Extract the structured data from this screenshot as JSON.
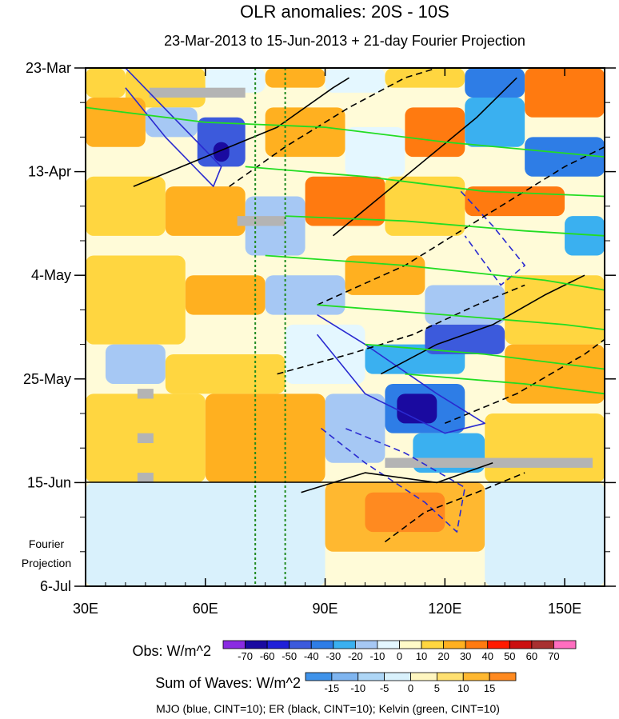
{
  "chart_data": {
    "type": "heatmap",
    "title": "OLR anomalies: 20S - 10S",
    "subtitle": "23-Mar-2013 to 15-Jun-2013 + 21-day Fourier Projection",
    "x_axis": {
      "range": [
        30,
        160
      ],
      "ticks": [
        30,
        60,
        90,
        120,
        150
      ],
      "tick_labels": [
        "30E",
        "60E",
        "90E",
        "120E",
        "150E"
      ]
    },
    "y_axis": {
      "range_days": [
        0,
        105
      ],
      "ticks_days": [
        0,
        21,
        42,
        63,
        84,
        105
      ],
      "tick_labels": [
        "23-Mar",
        "13-Apr",
        "4-May",
        "25-May",
        "15-Jun",
        "6-Jul"
      ],
      "minor_every_days": 7
    },
    "projection_start_day": 84,
    "projection_label_line1": "Fourier",
    "projection_label_line2": "Projection",
    "reference_longitudes": [
      72.5,
      80
    ],
    "obs_colorbar": {
      "label": "Obs: W/m^2",
      "levels": [
        "-70",
        "-60",
        "-50",
        "-40",
        "-30",
        "-20",
        "-10",
        "0",
        "10",
        "20",
        "30",
        "40",
        "50",
        "60",
        "70"
      ],
      "colors": [
        "#8a2be2",
        "#1a0aa0",
        "#2020d8",
        "#3c5adc",
        "#2e7de6",
        "#3ab0f0",
        "#a6c8f4",
        "#e4f7ff",
        "#fffbc8",
        "#ffd640",
        "#ffb020",
        "#ff7a10",
        "#ff1a00",
        "#cc1010",
        "#a83030",
        "#ff6ec0"
      ]
    },
    "waves_colorbar": {
      "label": "Sum of Waves: W/m^2",
      "levels": [
        "-15",
        "-10",
        "-5",
        "0",
        "5",
        "10",
        "15"
      ],
      "colors": [
        "#3f93ea",
        "#7fb5f0",
        "#aed6f6",
        "#d9f1fc",
        "#fff6c0",
        "#ffe070",
        "#ffb830",
        "#ff8a20"
      ]
    },
    "legend_text": "MJO (blue, CINT=10); ER (black, CINT=10); Kelvin (green, CINT=10)",
    "contour_colors": {
      "MJO": "#2a2ad0",
      "ER": "#000000",
      "Kelvin": "#22dd22"
    },
    "cells": [
      {
        "lon": [
          30,
          40
        ],
        "day": [
          0,
          6
        ],
        "v": 10
      },
      {
        "lon": [
          40,
          60
        ],
        "day": [
          0,
          8
        ],
        "v": 10
      },
      {
        "lon": [
          60,
          75
        ],
        "day": [
          0,
          5
        ],
        "v": -10
      },
      {
        "lon": [
          75,
          90
        ],
        "day": [
          0,
          4
        ],
        "v": 20
      },
      {
        "lon": [
          90,
          105
        ],
        "day": [
          0,
          5
        ],
        "v": -10
      },
      {
        "lon": [
          105,
          125
        ],
        "day": [
          0,
          4
        ],
        "v": 10
      },
      {
        "lon": [
          125,
          140
        ],
        "day": [
          0,
          6
        ],
        "v": -40
      },
      {
        "lon": [
          140,
          160
        ],
        "day": [
          0,
          10
        ],
        "v": 30
      },
      {
        "lon": [
          30,
          45
        ],
        "day": [
          6,
          16
        ],
        "v": 20
      },
      {
        "lon": [
          45,
          58
        ],
        "day": [
          8,
          14
        ],
        "v": -20
      },
      {
        "lon": [
          58,
          70
        ],
        "day": [
          10,
          20
        ],
        "v": -50
      },
      {
        "lon": [
          62,
          66
        ],
        "day": [
          15,
          19
        ],
        "v": -70
      },
      {
        "lon": [
          75,
          95
        ],
        "day": [
          8,
          18
        ],
        "v": 20
      },
      {
        "lon": [
          95,
          110
        ],
        "day": [
          12,
          22
        ],
        "v": -10
      },
      {
        "lon": [
          110,
          125
        ],
        "day": [
          8,
          18
        ],
        "v": 30
      },
      {
        "lon": [
          125,
          140
        ],
        "day": [
          6,
          16
        ],
        "v": -30
      },
      {
        "lon": [
          140,
          160
        ],
        "day": [
          14,
          22
        ],
        "v": -40
      },
      {
        "lon": [
          30,
          50
        ],
        "day": [
          22,
          34
        ],
        "v": 10
      },
      {
        "lon": [
          50,
          70
        ],
        "day": [
          24,
          34
        ],
        "v": 20
      },
      {
        "lon": [
          70,
          85
        ],
        "day": [
          26,
          38
        ],
        "v": -20
      },
      {
        "lon": [
          85,
          105
        ],
        "day": [
          22,
          32
        ],
        "v": 30
      },
      {
        "lon": [
          105,
          125
        ],
        "day": [
          22,
          34
        ],
        "v": 10
      },
      {
        "lon": [
          125,
          150
        ],
        "day": [
          24,
          30
        ],
        "v": 30
      },
      {
        "lon": [
          150,
          160
        ],
        "day": [
          30,
          38
        ],
        "v": -30
      },
      {
        "lon": [
          30,
          55
        ],
        "day": [
          38,
          56
        ],
        "v": 10
      },
      {
        "lon": [
          55,
          75
        ],
        "day": [
          42,
          50
        ],
        "v": 20
      },
      {
        "lon": [
          75,
          95
        ],
        "day": [
          42,
          50
        ],
        "v": -20
      },
      {
        "lon": [
          95,
          115
        ],
        "day": [
          38,
          46
        ],
        "v": 20
      },
      {
        "lon": [
          115,
          135
        ],
        "day": [
          44,
          52
        ],
        "v": -20
      },
      {
        "lon": [
          135,
          160
        ],
        "day": [
          42,
          56
        ],
        "v": 10
      },
      {
        "lon": [
          35,
          50
        ],
        "day": [
          56,
          64
        ],
        "v": -20
      },
      {
        "lon": [
          50,
          80
        ],
        "day": [
          58,
          66
        ],
        "v": 10
      },
      {
        "lon": [
          80,
          100
        ],
        "day": [
          52,
          64
        ],
        "v": -10
      },
      {
        "lon": [
          100,
          125
        ],
        "day": [
          56,
          62
        ],
        "v": -30
      },
      {
        "lon": [
          115,
          135
        ],
        "day": [
          52,
          58
        ],
        "v": -50
      },
      {
        "lon": [
          135,
          160
        ],
        "day": [
          56,
          68
        ],
        "v": 20
      },
      {
        "lon": [
          30,
          60
        ],
        "day": [
          66,
          84
        ],
        "v": 10
      },
      {
        "lon": [
          60,
          90
        ],
        "day": [
          66,
          84
        ],
        "v": 20
      },
      {
        "lon": [
          90,
          105
        ],
        "day": [
          66,
          80
        ],
        "v": -20
      },
      {
        "lon": [
          105,
          125
        ],
        "day": [
          64,
          74
        ],
        "v": -40
      },
      {
        "lon": [
          108,
          118
        ],
        "day": [
          66,
          72
        ],
        "v": -70
      },
      {
        "lon": [
          112,
          130
        ],
        "day": [
          74,
          82
        ],
        "v": -30
      },
      {
        "lon": [
          130,
          160
        ],
        "day": [
          70,
          84
        ],
        "v": 10
      },
      {
        "lon": [
          30,
          90
        ],
        "day": [
          84,
          105
        ],
        "v": -5
      },
      {
        "lon": [
          90,
          130
        ],
        "day": [
          84,
          98
        ],
        "v": 10
      },
      {
        "lon": [
          100,
          120
        ],
        "day": [
          86,
          94
        ],
        "v": 15
      },
      {
        "lon": [
          130,
          160
        ],
        "day": [
          84,
          105
        ],
        "v": -5
      }
    ],
    "missing_segments": [
      {
        "lon": [
          46,
          70
        ],
        "day": [
          4,
          6
        ]
      },
      {
        "lon": [
          68,
          80
        ],
        "day": [
          30,
          32
        ]
      },
      {
        "lon": [
          43,
          47
        ],
        "day": [
          65,
          67
        ]
      },
      {
        "lon": [
          43,
          47
        ],
        "day": [
          74,
          76
        ]
      },
      {
        "lon": [
          43,
          47
        ],
        "day": [
          82,
          84
        ]
      },
      {
        "lon": [
          105,
          157
        ],
        "day": [
          79,
          81
        ]
      }
    ],
    "contours": [
      {
        "wave": "MJO",
        "style": "solid",
        "path": [
          [
            40,
            0
          ],
          [
            52,
            10
          ],
          [
            64,
            20
          ],
          [
            62,
            24
          ],
          [
            50,
            14
          ],
          [
            40,
            4
          ]
        ]
      },
      {
        "wave": "MJO",
        "style": "solid",
        "path": [
          [
            88,
            50
          ],
          [
            100,
            56
          ],
          [
            118,
            66
          ],
          [
            130,
            72
          ],
          [
            120,
            74
          ],
          [
            100,
            66
          ],
          [
            88,
            54
          ]
        ]
      },
      {
        "wave": "MJO",
        "style": "dashed",
        "path": [
          [
            89,
            73
          ],
          [
            100,
            80
          ],
          [
            115,
            88
          ],
          [
            123,
            94
          ],
          [
            125,
            85
          ],
          [
            110,
            78
          ],
          [
            95,
            73
          ]
        ]
      },
      {
        "wave": "MJO",
        "style": "dashed",
        "path": [
          [
            124,
            25
          ],
          [
            132,
            32
          ],
          [
            140,
            40
          ],
          [
            134,
            44
          ],
          [
            125,
            34
          ]
        ]
      },
      {
        "wave": "ER",
        "style": "solid",
        "path": [
          [
            42,
            24
          ],
          [
            60,
            18
          ],
          [
            78,
            12
          ],
          [
            92,
            4
          ],
          [
            96,
            2
          ]
        ]
      },
      {
        "wave": "ER",
        "style": "dashed",
        "path": [
          [
            66,
            24
          ],
          [
            80,
            16
          ],
          [
            96,
            8
          ],
          [
            110,
            2
          ],
          [
            118,
            0
          ]
        ]
      },
      {
        "wave": "ER",
        "style": "solid",
        "path": [
          [
            92,
            34
          ],
          [
            110,
            22
          ],
          [
            128,
            10
          ],
          [
            138,
            2
          ]
        ]
      },
      {
        "wave": "ER",
        "style": "dashed",
        "path": [
          [
            88,
            48
          ],
          [
            110,
            40
          ],
          [
            130,
            30
          ],
          [
            150,
            20
          ],
          [
            160,
            16
          ]
        ]
      },
      {
        "wave": "ER",
        "style": "solid",
        "path": [
          [
            104,
            62
          ],
          [
            118,
            56
          ],
          [
            132,
            52
          ],
          [
            145,
            46
          ],
          [
            155,
            42
          ]
        ]
      },
      {
        "wave": "ER",
        "style": "dashed",
        "path": [
          [
            78,
            62
          ],
          [
            96,
            58
          ],
          [
            112,
            54
          ],
          [
            128,
            48
          ],
          [
            140,
            44
          ]
        ]
      },
      {
        "wave": "ER",
        "style": "dashed",
        "path": [
          [
            120,
            72
          ],
          [
            138,
            66
          ],
          [
            155,
            58
          ],
          [
            160,
            55
          ]
        ]
      },
      {
        "wave": "ER",
        "style": "solid",
        "path": [
          [
            84,
            86
          ],
          [
            100,
            82
          ],
          [
            118,
            84
          ],
          [
            132,
            80
          ]
        ]
      },
      {
        "wave": "ER",
        "style": "dashed",
        "path": [
          [
            105,
            96
          ],
          [
            115,
            90
          ],
          [
            128,
            86
          ],
          [
            140,
            82
          ]
        ]
      },
      {
        "wave": "Kelvin",
        "style": "solid",
        "path": [
          [
            30,
            8
          ],
          [
            60,
            11
          ],
          [
            90,
            12
          ],
          [
            120,
            15
          ],
          [
            160,
            18
          ]
        ]
      },
      {
        "wave": "Kelvin",
        "style": "solid",
        "path": [
          [
            70,
            20
          ],
          [
            100,
            22
          ],
          [
            130,
            25
          ],
          [
            160,
            26
          ]
        ]
      },
      {
        "wave": "Kelvin",
        "style": "solid",
        "path": [
          [
            80,
            30
          ],
          [
            110,
            31
          ],
          [
            140,
            33
          ],
          [
            160,
            34
          ]
        ]
      },
      {
        "wave": "Kelvin",
        "style": "solid",
        "path": [
          [
            75,
            38
          ],
          [
            110,
            40
          ],
          [
            145,
            43
          ],
          [
            160,
            45
          ]
        ]
      },
      {
        "wave": "Kelvin",
        "style": "solid",
        "path": [
          [
            88,
            48
          ],
          [
            120,
            50
          ],
          [
            150,
            52
          ],
          [
            160,
            53
          ]
        ]
      },
      {
        "wave": "Kelvin",
        "style": "solid",
        "path": [
          [
            100,
            56
          ],
          [
            130,
            58
          ],
          [
            160,
            61
          ]
        ]
      },
      {
        "wave": "Kelvin",
        "style": "solid",
        "path": [
          [
            110,
            62
          ],
          [
            140,
            64
          ],
          [
            160,
            66
          ]
        ]
      }
    ]
  }
}
